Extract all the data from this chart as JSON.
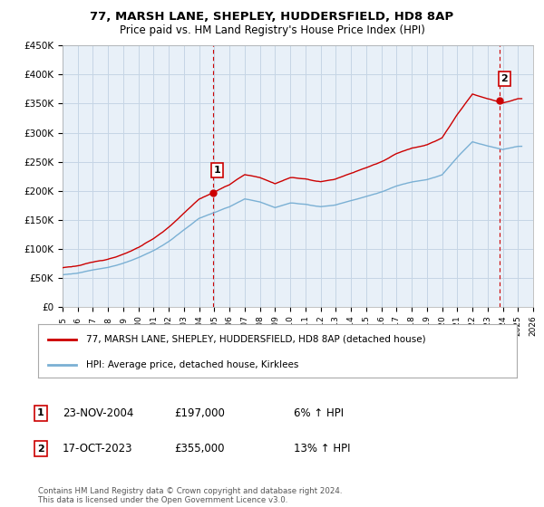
{
  "title": "77, MARSH LANE, SHEPLEY, HUDDERSFIELD, HD8 8AP",
  "subtitle": "Price paid vs. HM Land Registry's House Price Index (HPI)",
  "legend_label_red": "77, MARSH LANE, SHEPLEY, HUDDERSFIELD, HD8 8AP (detached house)",
  "legend_label_blue": "HPI: Average price, detached house, Kirklees",
  "footnote": "Contains HM Land Registry data © Crown copyright and database right 2024.\nThis data is licensed under the Open Government Licence v3.0.",
  "annotation1_label": "1",
  "annotation1_date": "23-NOV-2004",
  "annotation1_price": "£197,000",
  "annotation1_hpi": "6% ↑ HPI",
  "annotation2_label": "2",
  "annotation2_date": "17-OCT-2023",
  "annotation2_price": "£355,000",
  "annotation2_hpi": "13% ↑ HPI",
  "red_color": "#cc0000",
  "blue_color": "#7ab0d4",
  "plot_bg_color": "#e8f0f8",
  "background_color": "#ffffff",
  "grid_color": "#c5d5e5",
  "dashed_line_color": "#cc0000",
  "ylim": [
    0,
    450000
  ],
  "yticks": [
    0,
    50000,
    100000,
    150000,
    200000,
    250000,
    300000,
    350000,
    400000,
    450000
  ],
  "x_start_year": 1995,
  "x_end_year": 2026,
  "sale1_year": 2004.9,
  "sale1_value": 197000,
  "sale2_year": 2023.8,
  "sale2_value": 355000,
  "hpi_years": [
    1995.0,
    1995.08,
    1995.17,
    1995.25,
    1995.33,
    1995.42,
    1995.5,
    1995.58,
    1995.67,
    1995.75,
    1995.83,
    1995.92,
    1996.0,
    1996.08,
    1996.17,
    1996.25,
    1996.33,
    1996.42,
    1996.5,
    1996.58,
    1996.67,
    1996.75,
    1996.83,
    1996.92,
    1997.0,
    1997.08,
    1997.17,
    1997.25,
    1997.33,
    1997.42,
    1997.5,
    1997.58,
    1997.67,
    1997.75,
    1997.83,
    1997.92,
    1998.0,
    1998.08,
    1998.17,
    1998.25,
    1998.33,
    1998.42,
    1998.5,
    1998.58,
    1998.67,
    1998.75,
    1998.83,
    1998.92,
    1999.0,
    1999.08,
    1999.17,
    1999.25,
    1999.33,
    1999.42,
    1999.5,
    1999.58,
    1999.67,
    1999.75,
    1999.83,
    1999.92,
    2000.0,
    2000.08,
    2000.17,
    2000.25,
    2000.33,
    2000.42,
    2000.5,
    2000.58,
    2000.67,
    2000.75,
    2000.83,
    2000.92,
    2001.0,
    2001.08,
    2001.17,
    2001.25,
    2001.33,
    2001.42,
    2001.5,
    2001.58,
    2001.67,
    2001.75,
    2001.83,
    2001.92,
    2002.0,
    2002.08,
    2002.17,
    2002.25,
    2002.33,
    2002.42,
    2002.5,
    2002.58,
    2002.67,
    2002.75,
    2002.83,
    2002.92,
    2003.0,
    2003.08,
    2003.17,
    2003.25,
    2003.33,
    2003.42,
    2003.5,
    2003.58,
    2003.67,
    2003.75,
    2003.83,
    2003.92,
    2004.0,
    2004.08,
    2004.17,
    2004.25,
    2004.33,
    2004.42,
    2004.5,
    2004.58,
    2004.67,
    2004.75,
    2004.83,
    2004.92,
    2005.0,
    2005.08,
    2005.17,
    2005.25,
    2005.33,
    2005.42,
    2005.5,
    2005.58,
    2005.67,
    2005.75,
    2005.83,
    2005.92,
    2006.0,
    2006.08,
    2006.17,
    2006.25,
    2006.33,
    2006.42,
    2006.5,
    2006.58,
    2006.67,
    2006.75,
    2006.83,
    2006.92,
    2007.0,
    2007.08,
    2007.17,
    2007.25,
    2007.33,
    2007.42,
    2007.5,
    2007.58,
    2007.67,
    2007.75,
    2007.83,
    2007.92,
    2008.0,
    2008.08,
    2008.17,
    2008.25,
    2008.33,
    2008.42,
    2008.5,
    2008.58,
    2008.67,
    2008.75,
    2008.83,
    2008.92,
    2009.0,
    2009.08,
    2009.17,
    2009.25,
    2009.33,
    2009.42,
    2009.5,
    2009.58,
    2009.67,
    2009.75,
    2009.83,
    2009.92,
    2010.0,
    2010.08,
    2010.17,
    2010.25,
    2010.33,
    2010.42,
    2010.5,
    2010.58,
    2010.67,
    2010.75,
    2010.83,
    2010.92,
    2011.0,
    2011.08,
    2011.17,
    2011.25,
    2011.33,
    2011.42,
    2011.5,
    2011.58,
    2011.67,
    2011.75,
    2011.83,
    2011.92,
    2012.0,
    2012.08,
    2012.17,
    2012.25,
    2012.33,
    2012.42,
    2012.5,
    2012.58,
    2012.67,
    2012.75,
    2012.83,
    2012.92,
    2013.0,
    2013.08,
    2013.17,
    2013.25,
    2013.33,
    2013.42,
    2013.5,
    2013.58,
    2013.67,
    2013.75,
    2013.83,
    2013.92,
    2014.0,
    2014.08,
    2014.17,
    2014.25,
    2014.33,
    2014.42,
    2014.5,
    2014.58,
    2014.67,
    2014.75,
    2014.83,
    2014.92,
    2015.0,
    2015.08,
    2015.17,
    2015.25,
    2015.33,
    2015.42,
    2015.5,
    2015.58,
    2015.67,
    2015.75,
    2015.83,
    2015.92,
    2016.0,
    2016.08,
    2016.17,
    2016.25,
    2016.33,
    2016.42,
    2016.5,
    2016.58,
    2016.67,
    2016.75,
    2016.83,
    2016.92,
    2017.0,
    2017.08,
    2017.17,
    2017.25,
    2017.33,
    2017.42,
    2017.5,
    2017.58,
    2017.67,
    2017.75,
    2017.83,
    2017.92,
    2018.0,
    2018.08,
    2018.17,
    2018.25,
    2018.33,
    2018.42,
    2018.5,
    2018.58,
    2018.67,
    2018.75,
    2018.83,
    2018.92,
    2019.0,
    2019.08,
    2019.17,
    2019.25,
    2019.33,
    2019.42,
    2019.5,
    2019.58,
    2019.67,
    2019.75,
    2019.83,
    2019.92,
    2020.0,
    2020.08,
    2020.17,
    2020.25,
    2020.33,
    2020.42,
    2020.5,
    2020.58,
    2020.67,
    2020.75,
    2020.83,
    2020.92,
    2021.0,
    2021.08,
    2021.17,
    2021.25,
    2021.33,
    2021.42,
    2021.5,
    2021.58,
    2021.67,
    2021.75,
    2021.83,
    2021.92,
    2022.0,
    2022.08,
    2022.17,
    2022.25,
    2022.33,
    2022.42,
    2022.5,
    2022.58,
    2022.67,
    2022.75,
    2022.83,
    2022.92,
    2023.0,
    2023.08,
    2023.17,
    2023.25,
    2023.33,
    2023.42,
    2023.5,
    2023.58,
    2023.67,
    2023.75,
    2023.83,
    2023.92,
    2024.0,
    2024.08,
    2024.17,
    2024.25,
    2024.33,
    2024.42,
    2024.5,
    2024.58,
    2024.67,
    2024.75,
    2024.83,
    2024.92,
    2025.0,
    2025.08,
    2025.17,
    2025.25
  ]
}
